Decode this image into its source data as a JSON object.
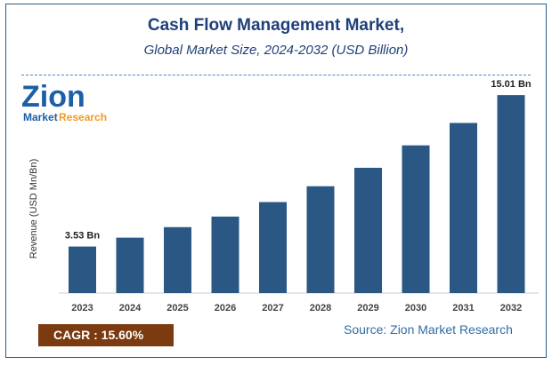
{
  "chart_data": {
    "type": "bar",
    "title": "Cash Flow Management Market,",
    "subtitle": "Global Market Size, 2024-2032 (USD Billion)",
    "xlabel": "",
    "ylabel": "Revenue (USD Mn/Bn)",
    "categories": [
      "2023",
      "2024",
      "2025",
      "2026",
      "2027",
      "2028",
      "2029",
      "2030",
      "2031",
      "2032"
    ],
    "values": [
      3.53,
      4.2,
      5.0,
      5.8,
      6.9,
      8.1,
      9.5,
      11.2,
      12.9,
      15.01
    ],
    "data_labels": {
      "0": "3.53 Bn",
      "9": "15.01 Bn"
    },
    "ylim": [
      0,
      16
    ],
    "grid": false,
    "bar_color": "#2a5783"
  },
  "logo": {
    "text_main": "Zion",
    "text_sub1": "Market",
    "text_sub2": "Research"
  },
  "cagr": "CAGR :  15.60%",
  "source": "Source: Zion Market Research"
}
